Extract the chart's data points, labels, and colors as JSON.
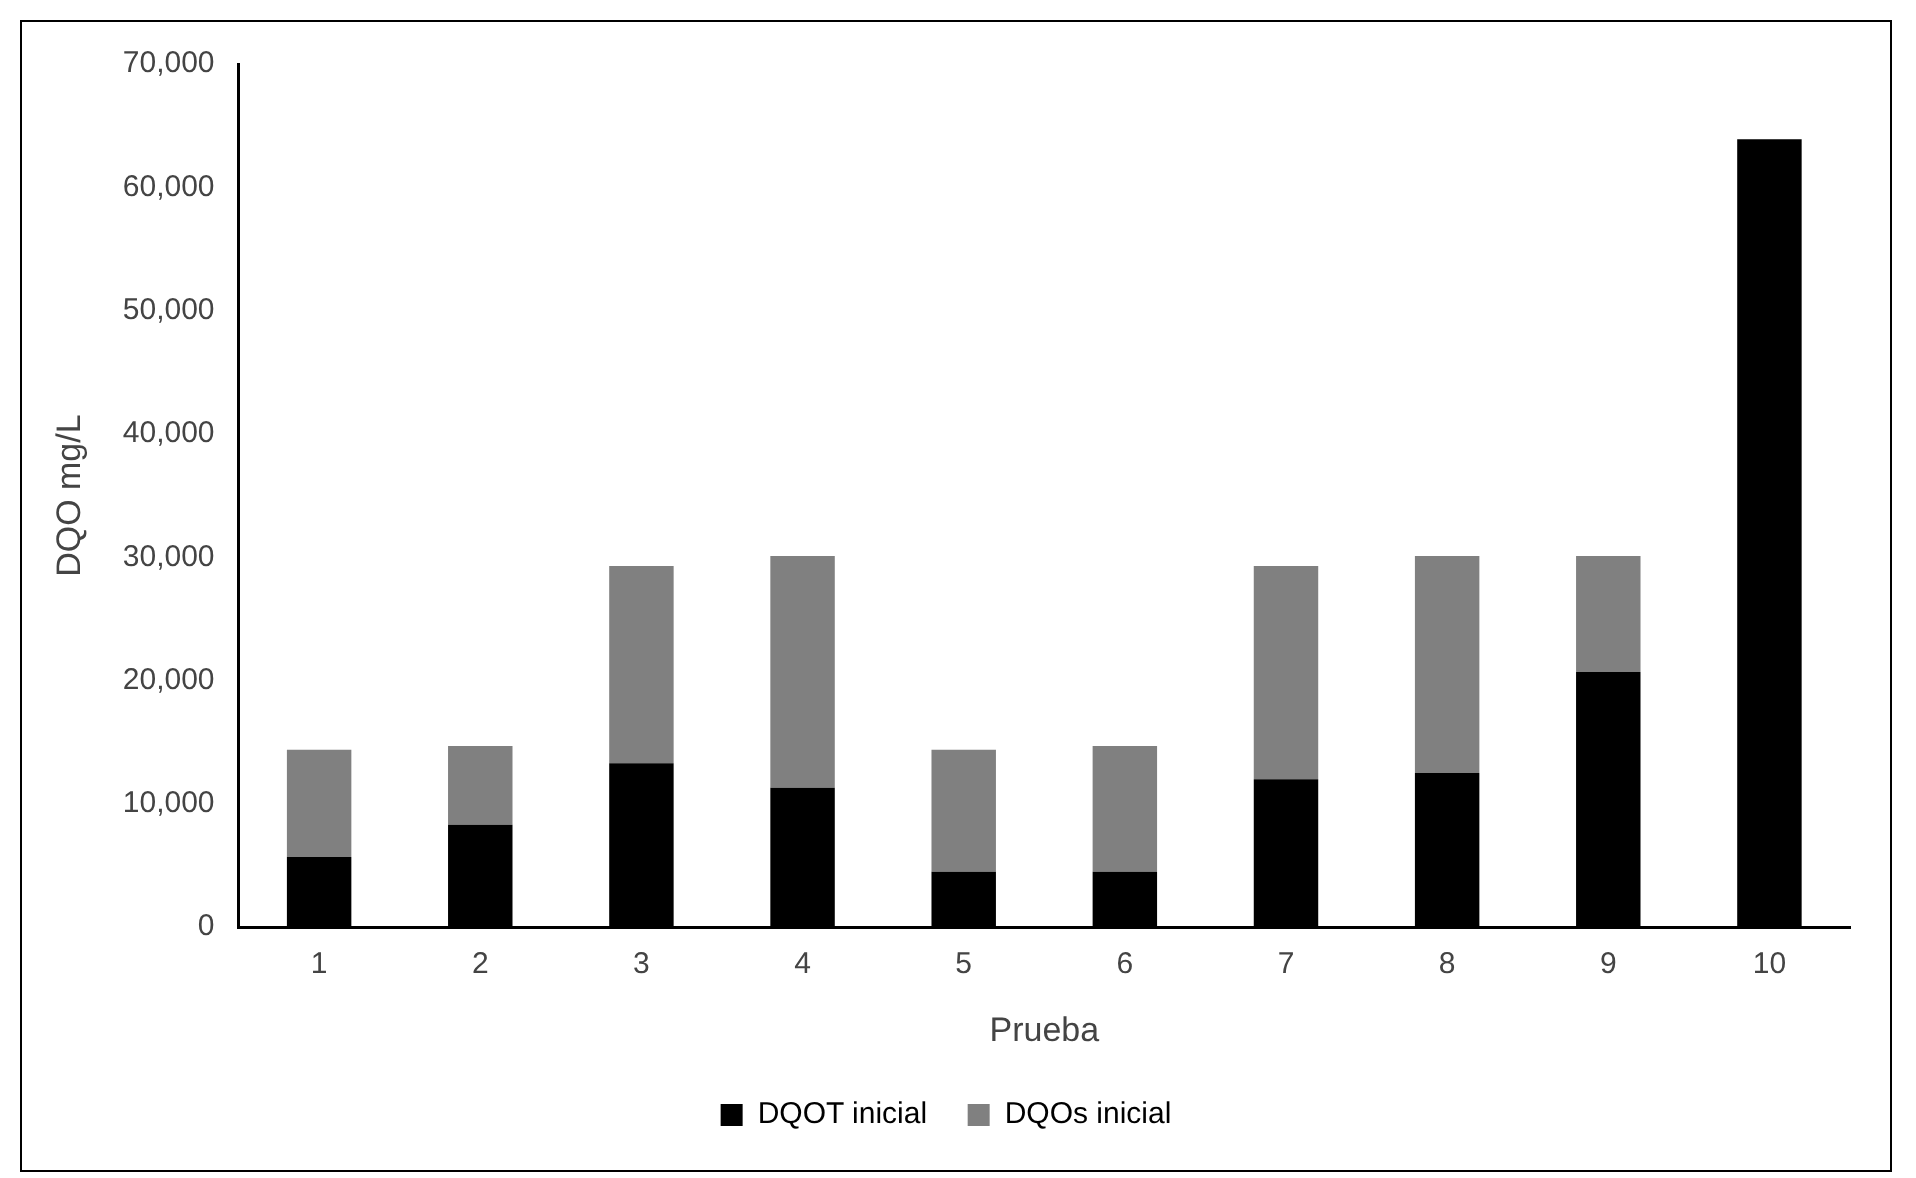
{
  "chart_data": {
    "type": "bar",
    "stacked": true,
    "xlabel": "Prueba",
    "ylabel": "DQO mg/L",
    "categories": [
      "1",
      "2",
      "3",
      "4",
      "5",
      "6",
      "7",
      "8",
      "9",
      "10"
    ],
    "series": [
      {
        "name": "DQOT inicial",
        "color": "#000000",
        "values": [
          5700,
          8300,
          13300,
          11300,
          4500,
          4500,
          12000,
          12500,
          20700,
          63900
        ]
      },
      {
        "name": "DQOs inicial",
        "color": "#808080",
        "values": [
          8700,
          6400,
          16000,
          18800,
          9900,
          10200,
          17300,
          17600,
          9400,
          0
        ]
      }
    ],
    "ylim": [
      0,
      70000
    ],
    "yticks": [
      {
        "value": 0,
        "label": "0"
      },
      {
        "value": 10000,
        "label": "10,000"
      },
      {
        "value": 20000,
        "label": "20,000"
      },
      {
        "value": 30000,
        "label": "30,000"
      },
      {
        "value": 40000,
        "label": "40,000"
      },
      {
        "value": 50000,
        "label": "50,000"
      },
      {
        "value": 60000,
        "label": "60,000"
      },
      {
        "value": 70000,
        "label": "70,000"
      }
    ],
    "grid": false,
    "legend": "bottom"
  }
}
